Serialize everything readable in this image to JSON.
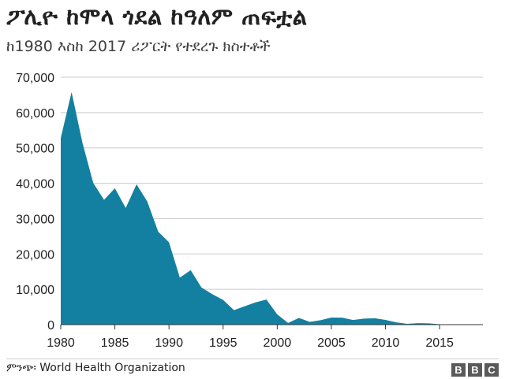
{
  "chart_data": {
    "type": "area",
    "title": "ፖሊዮ ከሞላ ጎደል ከዓለም ጠፍቷል",
    "subtitle": "ከ1980 እስከ 2017 ሪፖርት የተደረጉ ክስተቶች",
    "xlabel": "",
    "ylabel": "",
    "xlim": [
      1980,
      2019
    ],
    "ylim": [
      0,
      70000
    ],
    "x_ticks": [
      1980,
      1985,
      1990,
      1995,
      2000,
      2005,
      2010,
      2015
    ],
    "x_tick_labels": [
      "1980",
      "1985",
      "1990",
      "1995",
      "2000",
      "2005",
      "2010",
      "2015"
    ],
    "y_ticks": [
      0,
      10000,
      20000,
      30000,
      40000,
      50000,
      60000,
      70000
    ],
    "y_tick_labels": [
      "0",
      "10,000",
      "20,000",
      "30,000",
      "40,000",
      "50,000",
      "60,000",
      "70,000"
    ],
    "grid": true,
    "fill_color": "#1380a1",
    "grid_color": "#cbcbcb",
    "series": [
      {
        "x": [
          1980,
          1981,
          1982,
          1983,
          1984,
          1985,
          1986,
          1987,
          1988,
          1989,
          1990,
          1991,
          1992,
          1993,
          1994,
          1995,
          1996,
          1997,
          1998,
          1999,
          2000,
          2001,
          2002,
          2003,
          2004,
          2005,
          2006,
          2007,
          2008,
          2009,
          2010,
          2011,
          2012,
          2013,
          2014,
          2015,
          2016,
          2017
        ],
        "values": [
          52800,
          65800,
          51500,
          40100,
          35300,
          38600,
          33000,
          39700,
          34800,
          26300,
          23300,
          13300,
          15400,
          10500,
          8600,
          7000,
          4100,
          5200,
          6300,
          7100,
          2900,
          480,
          1900,
          780,
          1250,
          2000,
          1990,
          1300,
          1700,
          1800,
          1350,
          650,
          220,
          420,
          360,
          100,
          40,
          20
        ]
      }
    ]
  },
  "footer": {
    "source": "ምንጭ፡ World Health Organization",
    "brand_letters": [
      "B",
      "B",
      "C"
    ]
  }
}
